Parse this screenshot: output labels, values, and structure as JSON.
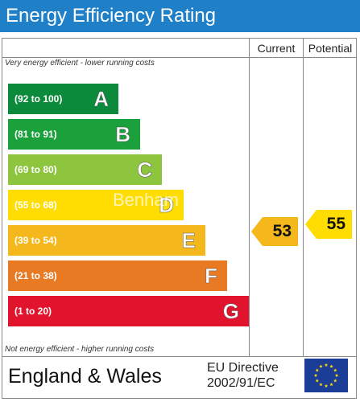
{
  "header": {
    "title": "Energy Efficiency Rating"
  },
  "columns": {
    "current": "Current",
    "potential": "Potential"
  },
  "notes": {
    "top": "Very energy efficient - lower running costs",
    "bottom": "Not energy efficient - higher running costs"
  },
  "footer": {
    "region": "England & Wales",
    "directive_line1": "EU Directive",
    "directive_line2": "2002/91/EC"
  },
  "watermark": "Benham",
  "chart_data": {
    "type": "bar",
    "title": "Energy Efficiency Rating",
    "bands": [
      {
        "letter": "A",
        "range": "(92 to 100)",
        "color": "#0b8a3c"
      },
      {
        "letter": "B",
        "range": "(81 to 91)",
        "color": "#1aa13b"
      },
      {
        "letter": "C",
        "range": "(69 to 80)",
        "color": "#8dc53e"
      },
      {
        "letter": "D",
        "range": "(55 to 68)",
        "color": "#ffdd00"
      },
      {
        "letter": "E",
        "range": "(39 to 54)",
        "color": "#f5b81c"
      },
      {
        "letter": "F",
        "range": "(21 to 38)",
        "color": "#e97a24"
      },
      {
        "letter": "G",
        "range": "(1 to 20)",
        "color": "#e2132c"
      }
    ],
    "current": {
      "value": 53,
      "band": "E",
      "color": "#f5b81c"
    },
    "potential": {
      "value": 55,
      "band": "D",
      "color": "#ffdd00"
    }
  }
}
